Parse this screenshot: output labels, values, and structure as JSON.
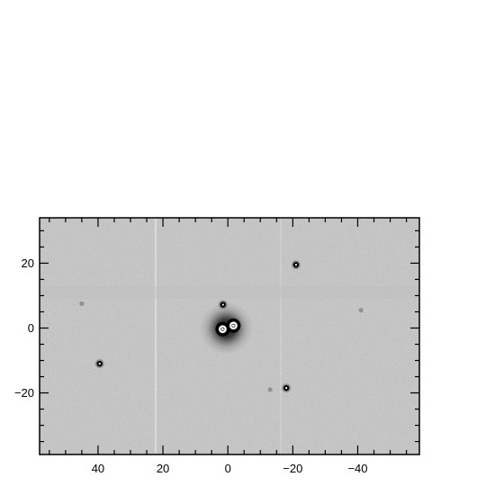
{
  "figure": {
    "x_axis": {
      "range": [
        58,
        -59
      ],
      "direction": "decreasing",
      "ticks": [
        40,
        20,
        0,
        -20,
        -40
      ],
      "tick_labels": [
        "40",
        "20",
        "0",
        "−20",
        "−40"
      ]
    },
    "y_axis": {
      "range": [
        -39,
        34
      ],
      "ticks": [
        20,
        0,
        -20
      ],
      "tick_labels": [
        "20",
        "0",
        "−20"
      ]
    },
    "image": {
      "kind": "grayscale astronomical image",
      "background": "#c8c8c8",
      "bright_color": "#000000"
    },
    "sources": [
      {
        "name": "central-double-source",
        "x": 0.5,
        "y": 0.2,
        "brightness": "saturated"
      },
      {
        "name": "source-north-center",
        "x": 1.5,
        "y": 7.2
      },
      {
        "name": "source-upper-right",
        "x": -21,
        "y": 19.5
      },
      {
        "name": "source-lower-left",
        "x": 39.5,
        "y": -11
      },
      {
        "name": "source-lower-right",
        "x": -18,
        "y": -18.5
      },
      {
        "name": "source-faint-left",
        "x": 45,
        "y": 7.5
      },
      {
        "name": "source-faint-lower-right",
        "x": -13,
        "y": -19
      },
      {
        "name": "source-faint-right",
        "x": -41,
        "y": 5.5
      }
    ]
  }
}
